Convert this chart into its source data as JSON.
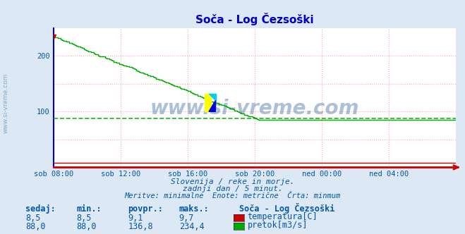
{
  "title": "Soča - Log Čezsoški",
  "title_color": "#0000cc",
  "bg_color": "#dce9f5",
  "plot_bg_color": "#ffffff",
  "grid_color": "#ffaaaa",
  "grid_style": ":",
  "axis_color": "#0000cc",
  "text_color": "#0055aa",
  "subtitle_lines": [
    "Slovenija / reke in morje.",
    "zadnji dan / 5 minut.",
    "Meritve: minimalne  Enote: metrične  Črta: minmum"
  ],
  "watermark": "www.si-vreme.com",
  "x_tick_labels": [
    "sob 08:00",
    "sob 12:00",
    "sob 16:00",
    "sob 20:00",
    "ned 00:00",
    "ned 04:00"
  ],
  "x_tick_positions": [
    0.0,
    0.1667,
    0.3333,
    0.5,
    0.6667,
    0.8333
  ],
  "ylim": [
    0,
    250
  ],
  "yticks": [
    100,
    200
  ],
  "hline_value": 88.0,
  "hline_color": "#00aa00",
  "hline_style": "--",
  "temperature_color": "#cc0000",
  "flow_color": "#00aa00",
  "table_headers": [
    "sedaj:",
    "min.:",
    "povpr.:",
    "maks.:"
  ],
  "table_row1": [
    "8,5",
    "8,5",
    "9,1",
    "9,7"
  ],
  "table_row2": [
    "88,0",
    "88,0",
    "136,8",
    "234,4"
  ],
  "legend_title": "Soča - Log Čezsoški",
  "legend_items": [
    "temperatura[C]",
    "pretok[m3/s]"
  ],
  "legend_colors": [
    "#cc0000",
    "#00aa00"
  ],
  "sidebar_text": "www.si-vreme.com",
  "sidebar_color": "#7799bb"
}
